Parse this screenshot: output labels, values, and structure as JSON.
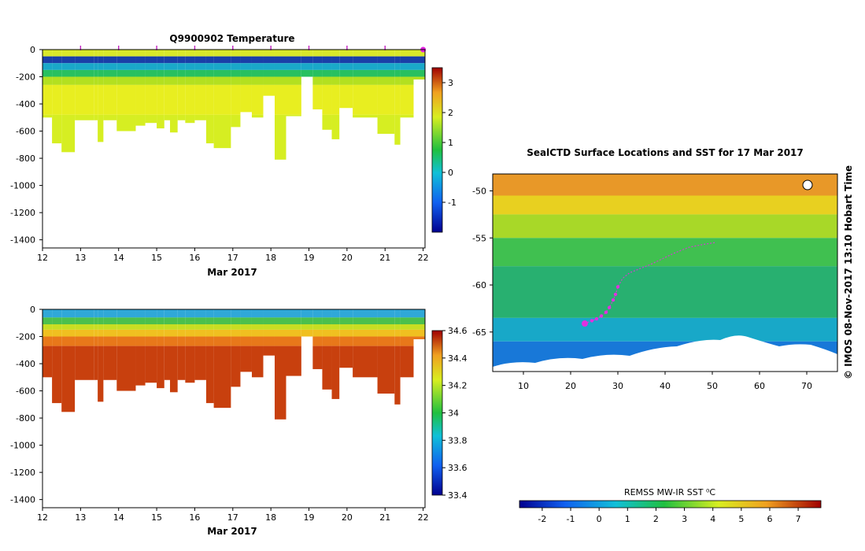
{
  "chart_data": [
    {
      "type": "heatmap",
      "title": "Q9900902  Temperature",
      "xlabel": "Mar 2017",
      "ylabel": "",
      "x_ticks": [
        "12",
        "13",
        "14",
        "15",
        "16",
        "17",
        "18",
        "19",
        "20",
        "21",
        "22"
      ],
      "xlim": [
        12,
        22.05
      ],
      "y_ticks": [
        "0",
        "-200",
        "-400",
        "-600",
        "-800",
        "-1000",
        "-1200",
        "-1400"
      ],
      "ylim": [
        -1460,
        0
      ],
      "profile_times": [
        13,
        14,
        15,
        16,
        17,
        18,
        19,
        20,
        21,
        22
      ],
      "colorbar": {
        "min": -2,
        "max": 3.5,
        "ticks": [
          "-1",
          "0",
          "1",
          "2",
          "3"
        ]
      },
      "profiles": [
        [
          12.0,
          -500
        ],
        [
          12.25,
          -690
        ],
        [
          12.5,
          -755
        ],
        [
          12.85,
          -520
        ],
        [
          13.35,
          -520
        ],
        [
          13.45,
          -680
        ],
        [
          13.6,
          -520
        ],
        [
          13.95,
          -600
        ],
        [
          14.45,
          -560
        ],
        [
          14.7,
          -540
        ],
        [
          15.0,
          -580
        ],
        [
          15.2,
          -520
        ],
        [
          15.35,
          -610
        ],
        [
          15.55,
          -520
        ],
        [
          15.75,
          -540
        ],
        [
          16.0,
          -520
        ],
        [
          16.3,
          -690
        ],
        [
          16.5,
          -725
        ],
        [
          16.95,
          -570
        ],
        [
          17.2,
          -460
        ],
        [
          17.5,
          -500
        ],
        [
          17.8,
          -340
        ],
        [
          18.1,
          -810
        ],
        [
          18.4,
          -490
        ],
        [
          18.8,
          -200
        ],
        [
          19.1,
          -440
        ],
        [
          19.35,
          -590
        ],
        [
          19.6,
          -660
        ],
        [
          19.8,
          -430
        ],
        [
          20.15,
          -500
        ],
        [
          20.8,
          -620
        ],
        [
          21.25,
          -700
        ],
        [
          21.4,
          -500
        ],
        [
          21.75,
          -220
        ]
      ],
      "layers": [
        {
          "top": 0,
          "bottom": -50,
          "color": "#d9e82a"
        },
        {
          "top": -50,
          "bottom": -100,
          "color": "#1a3fa8"
        },
        {
          "top": -100,
          "bottom": -150,
          "color": "#1aa8c9"
        },
        {
          "top": -150,
          "bottom": -200,
          "color": "#28c060"
        },
        {
          "top": -200,
          "bottom": -260,
          "color": "#b3e020"
        },
        {
          "top": -260,
          "bottom": -480,
          "color": "#e8ee20"
        },
        {
          "top": -480,
          "bottom": -820,
          "color": "#d6ee22"
        }
      ]
    },
    {
      "type": "heatmap",
      "title": "",
      "xlabel": "Mar 2017",
      "ylabel": "",
      "x_ticks": [
        "12",
        "13",
        "14",
        "15",
        "16",
        "17",
        "18",
        "19",
        "20",
        "21",
        "22"
      ],
      "xlim": [
        12,
        22.05
      ],
      "y_ticks": [
        "0",
        "-200",
        "-400",
        "-600",
        "-800",
        "-1000",
        "-1200",
        "-1400"
      ],
      "ylim": [
        -1460,
        0
      ],
      "colorbar": {
        "min": 33.4,
        "max": 34.6,
        "ticks": [
          "33.4",
          "33.6",
          "33.8",
          "34",
          "34.2",
          "34.4",
          "34.6"
        ]
      },
      "layers": [
        {
          "top": 0,
          "bottom": -60,
          "color": "#2fa8d8"
        },
        {
          "top": -60,
          "bottom": -110,
          "color": "#4cc04c"
        },
        {
          "top": -110,
          "bottom": -150,
          "color": "#c8de22"
        },
        {
          "top": -150,
          "bottom": -200,
          "color": "#f0c020"
        },
        {
          "top": -200,
          "bottom": -270,
          "color": "#e8781a"
        },
        {
          "top": -270,
          "bottom": -820,
          "color": "#c8400e"
        }
      ]
    },
    {
      "type": "heatmap",
      "title": "SealCTD Surface Locations and SST for 17 Mar 2017",
      "xlabel": "",
      "ylabel": "",
      "x_ticks": [
        "10",
        "20",
        "30",
        "40",
        "50",
        "60",
        "70"
      ],
      "xlim": [
        3.5,
        76.5
      ],
      "y_ticks": [
        "-50",
        "-55",
        "-60",
        "-65"
      ],
      "ylim": [
        -69.2,
        -48.2
      ],
      "colorbar": {
        "label": "REMSS MW-IR SST ⁰C",
        "min": -2.8,
        "max": 7.8,
        "ticks": [
          "-2",
          "-1",
          "0",
          "1",
          "2",
          "3",
          "4",
          "5",
          "6",
          "7"
        ]
      },
      "sst_bands": [
        {
          "lat_top": -48.2,
          "lat_bottom": -50.5,
          "color": "#e89828"
        },
        {
          "lat_top": -50.5,
          "lat_bottom": -52.5,
          "color": "#e8d020"
        },
        {
          "lat_top": -52.5,
          "lat_bottom": -55.0,
          "color": "#a8d828"
        },
        {
          "lat_top": -55.0,
          "lat_bottom": -58.0,
          "color": "#40c050"
        },
        {
          "lat_top": -58.0,
          "lat_bottom": -63.5,
          "color": "#28b070"
        },
        {
          "lat_top": -63.5,
          "lat_bottom": -66.0,
          "color": "#18a8c8"
        },
        {
          "lat_top": -66.0,
          "lat_bottom": -69.2,
          "color": "#1878d8"
        }
      ],
      "track": [
        [
          50.5,
          -55.5
        ],
        [
          48,
          -55.7
        ],
        [
          45,
          -56
        ],
        [
          42,
          -56.6
        ],
        [
          39.5,
          -57.2
        ],
        [
          37,
          -57.8
        ],
        [
          34.5,
          -58.3
        ],
        [
          32.5,
          -58.7
        ],
        [
          31,
          -59.3
        ],
        [
          30,
          -60.2
        ],
        [
          29.5,
          -61
        ],
        [
          29,
          -61.6
        ],
        [
          28.2,
          -62.4
        ],
        [
          27.5,
          -62.9
        ],
        [
          26.5,
          -63.3
        ],
        [
          25.5,
          -63.6
        ],
        [
          24.5,
          -63.8
        ],
        [
          23,
          -64.1
        ]
      ],
      "last_position": [
        23,
        -64.1
      ]
    }
  ],
  "footer": {
    "credit": "© IMOS 08-Nov-2017 13:10 Hobart Time"
  }
}
